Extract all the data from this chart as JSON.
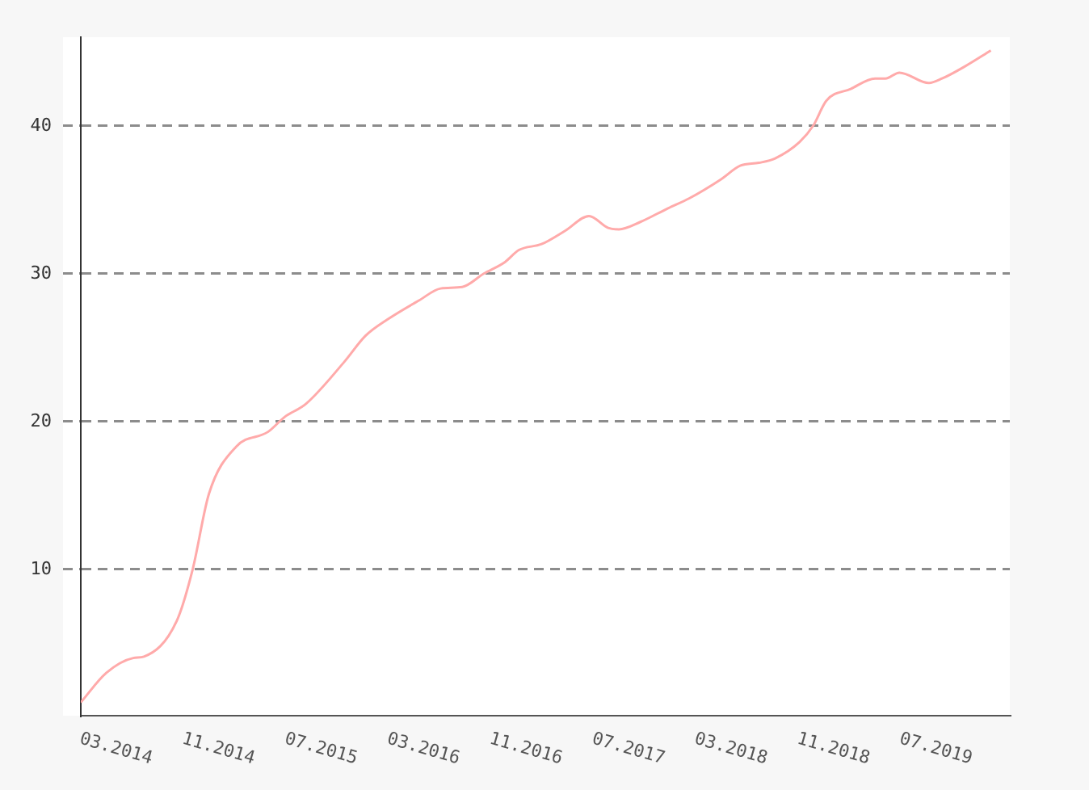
{
  "chart_data": {
    "type": "line",
    "color": "#ffaaaa",
    "x": [
      "2014-03-01",
      "2014-05-01",
      "2014-07-04",
      "2014-07-30",
      "2014-10-16",
      "2014-11-23",
      "2015-01-01",
      "2015-03-05",
      "2015-05-20",
      "2015-06-28",
      "2015-08-19",
      "2015-11-17",
      "2016-01-08",
      "2016-02-28",
      "2016-05-14",
      "2016-07-04",
      "2016-08-25",
      "2016-10-15",
      "2016-12-05",
      "2017-01-07",
      "2017-02-28",
      "2017-04-25",
      "2017-06-21",
      "2017-08-06",
      "2017-09-01",
      "2017-10-22",
      "2017-12-25",
      "2018-02-15",
      "2018-05-01",
      "2018-06-15",
      "2018-07-30",
      "2018-09-07",
      "2018-11-04",
      "2018-12-06",
      "2019-01-07",
      "2019-03-04",
      "2019-05-01",
      "2019-05-26",
      "2019-06-28",
      "2019-09-07",
      "2019-10-08",
      "2019-11-30",
      "2020-02-02"
    ],
    "values": [
      1.0,
      3.0,
      4.0,
      4.1,
      6.5,
      10.0,
      15.1,
      18.3,
      19.3,
      20.3,
      21.2,
      24.0,
      25.8,
      26.9,
      28.2,
      29.0,
      29.1,
      30.0,
      30.8,
      31.6,
      32.0,
      32.9,
      33.9,
      33.1,
      33.0,
      33.5,
      34.4,
      35.1,
      36.4,
      37.3,
      37.5,
      37.8,
      38.9,
      40.0,
      41.7,
      42.5,
      43.2,
      43.2,
      43.6,
      42.9,
      43.2,
      44.0,
      45.1
    ],
    "xlim": [
      "2014-03-01",
      "2020-03-17"
    ],
    "xticks": [
      {
        "value": "2014-03",
        "label": "03.2014"
      },
      {
        "value": "2014-11",
        "label": "11.2014"
      },
      {
        "value": "2015-07",
        "label": "07.2015"
      },
      {
        "value": "2016-03",
        "label": "03.2016"
      },
      {
        "value": "2016-11",
        "label": "11.2016"
      },
      {
        "value": "2017-07",
        "label": "07.2017"
      },
      {
        "value": "2018-03",
        "label": "03.2018"
      },
      {
        "value": "2018-11",
        "label": "11.2018"
      },
      {
        "value": "2019-07",
        "label": "07.2019"
      }
    ],
    "ylim": [
      0.1,
      46
    ],
    "yticks": [
      10,
      20,
      30,
      40
    ],
    "grid": "y"
  }
}
